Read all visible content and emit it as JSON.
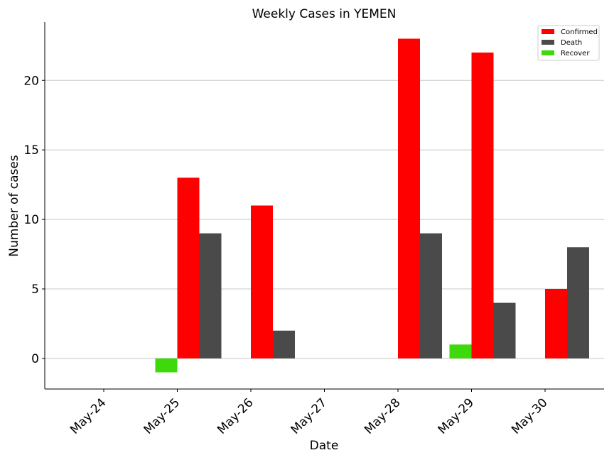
{
  "chart_data": {
    "type": "bar",
    "title": "Weekly Cases in YEMEN",
    "xlabel": "Date",
    "ylabel": "Number of cases",
    "categories": [
      "May-24",
      "May-25",
      "May-26",
      "May-27",
      "May-28",
      "May-29",
      "May-30"
    ],
    "series": [
      {
        "name": "Confirmed",
        "color": "#ff0000",
        "values": [
          0,
          13,
          11,
          0,
          23,
          22,
          5
        ]
      },
      {
        "name": "Death",
        "color": "#4a4a4a",
        "values": [
          0,
          9,
          2,
          0,
          9,
          4,
          8
        ]
      },
      {
        "name": "Recover",
        "color": "#3dd90a",
        "values": [
          0,
          -1,
          0,
          0,
          0,
          1,
          0
        ]
      }
    ],
    "ylim": [
      -2.2,
      24.2
    ],
    "yticks": [
      0,
      5,
      10,
      15,
      20
    ],
    "grid": "horizontal",
    "legend": "top-right"
  }
}
